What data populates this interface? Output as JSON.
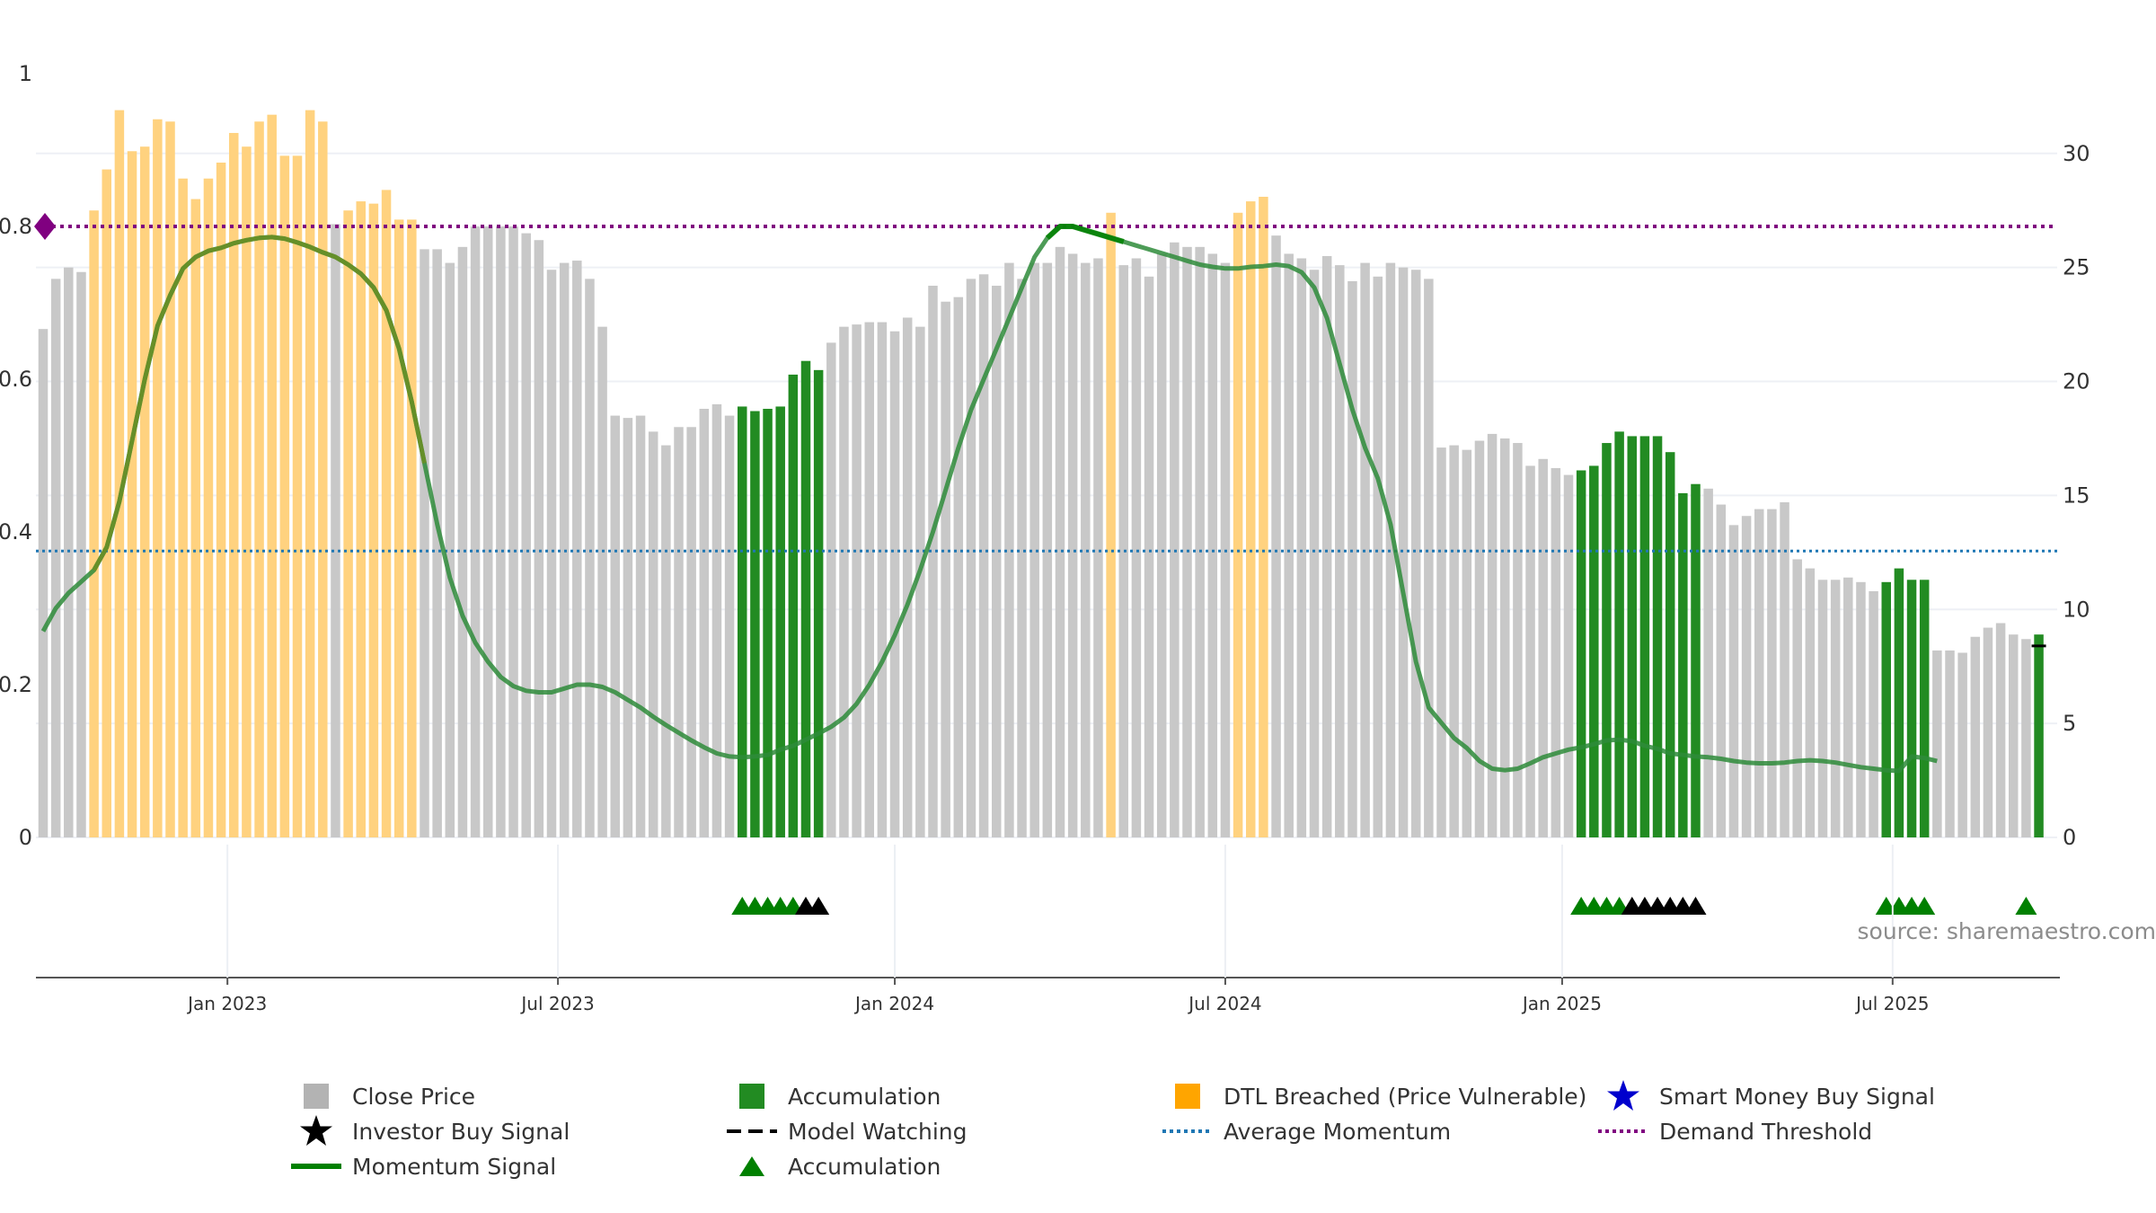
{
  "chart_data": {
    "type": "bar",
    "left_axis": {
      "range": [
        0,
        1
      ],
      "ticks": [
        "0",
        "0.2",
        "0.4",
        "0.6",
        "0.8",
        "1"
      ]
    },
    "right_axis": {
      "range": [
        0,
        33.5
      ],
      "ticks": [
        "0",
        "5",
        "10",
        "15",
        "20",
        "25",
        "30"
      ]
    },
    "x_ticks": [
      {
        "label": "Jan 2023",
        "i": 14.5
      },
      {
        "label": "Jul 2023",
        "i": 40.5
      },
      {
        "label": "Jan 2024",
        "i": 67
      },
      {
        "label": "Jul 2024",
        "i": 93
      },
      {
        "label": "Jan 2025",
        "i": 119.5
      },
      {
        "label": "Jul 2025",
        "i": 145.5
      }
    ],
    "close_prices": [
      22.3,
      24.5,
      25.0,
      24.8,
      27.5,
      29.3,
      31.9,
      30.1,
      30.3,
      31.5,
      31.4,
      28.9,
      28.0,
      28.9,
      29.6,
      30.9,
      30.3,
      31.4,
      31.7,
      29.9,
      29.9,
      31.9,
      31.4,
      26.9,
      27.5,
      27.9,
      27.8,
      28.4,
      27.1,
      27.1,
      25.8,
      25.8,
      25.2,
      25.9,
      26.8,
      26.8,
      26.8,
      26.8,
      26.5,
      26.2,
      24.9,
      25.2,
      25.3,
      24.5,
      22.4,
      18.5,
      18.4,
      18.5,
      17.8,
      17.2,
      18.0,
      18.0,
      18.8,
      19.0,
      18.5,
      18.9,
      18.7,
      18.8,
      18.9,
      20.3,
      20.9,
      20.5,
      21.7,
      22.4,
      22.5,
      22.6,
      22.6,
      22.2,
      22.8,
      22.4,
      24.2,
      23.5,
      23.7,
      24.5,
      24.7,
      24.2,
      25.2,
      24.5,
      25.2,
      25.2,
      25.9,
      25.6,
      25.2,
      25.4,
      27.4,
      25.1,
      25.4,
      24.6,
      25.6,
      26.1,
      25.9,
      25.9,
      25.6,
      25.2,
      27.4,
      27.9,
      28.1,
      26.4,
      25.6,
      25.4,
      24.9,
      25.5,
      25.1,
      24.4,
      25.2,
      24.6,
      25.2,
      25.0,
      24.9,
      24.5,
      17.1,
      17.2,
      17.0,
      17.4,
      17.7,
      17.5,
      17.3,
      16.3,
      16.6,
      16.2,
      15.9,
      16.1,
      16.3,
      17.3,
      17.8,
      17.6,
      17.6,
      17.6,
      16.9,
      15.1,
      15.5,
      15.3,
      14.6,
      13.7,
      14.1,
      14.4,
      14.4,
      14.7,
      12.2,
      11.8,
      11.3,
      11.3,
      11.4,
      11.2,
      10.8,
      11.2,
      11.8,
      11.3,
      11.3,
      8.2,
      8.2,
      8.1,
      8.8,
      9.2,
      9.4,
      8.9,
      8.7,
      8.9
    ],
    "bar_categories": [
      "g",
      "g",
      "g",
      "g",
      "o",
      "o",
      "o",
      "o",
      "o",
      "o",
      "o",
      "o",
      "o",
      "o",
      "o",
      "o",
      "o",
      "o",
      "o",
      "o",
      "o",
      "o",
      "o",
      "g",
      "o",
      "o",
      "o",
      "o",
      "o",
      "o",
      "g",
      "g",
      "g",
      "g",
      "g",
      "g",
      "g",
      "g",
      "g",
      "g",
      "g",
      "g",
      "g",
      "g",
      "g",
      "g",
      "g",
      "g",
      "g",
      "g",
      "g",
      "g",
      "g",
      "g",
      "g",
      "a",
      "a",
      "a",
      "a",
      "a",
      "a",
      "a",
      "g",
      "g",
      "g",
      "g",
      "g",
      "g",
      "g",
      "g",
      "g",
      "g",
      "g",
      "g",
      "g",
      "g",
      "g",
      "g",
      "g",
      "g",
      "g",
      "g",
      "g",
      "g",
      "o",
      "g",
      "g",
      "g",
      "g",
      "g",
      "g",
      "g",
      "g",
      "g",
      "o",
      "o",
      "o",
      "g",
      "g",
      "g",
      "g",
      "g",
      "g",
      "g",
      "g",
      "g",
      "g",
      "g",
      "g",
      "g",
      "g",
      "g",
      "g",
      "g",
      "g",
      "g",
      "g",
      "g",
      "g",
      "g",
      "g",
      "a",
      "a",
      "a",
      "a",
      "a",
      "a",
      "a",
      "a",
      "a",
      "a",
      "g",
      "g",
      "g",
      "g",
      "g",
      "g",
      "g",
      "g",
      "g",
      "g",
      "g",
      "g",
      "g",
      "g",
      "a",
      "a",
      "a",
      "a",
      "g",
      "g",
      "g",
      "g",
      "g",
      "g",
      "g",
      "g",
      "a",
      "g",
      "g"
    ],
    "momentum": [
      [
        0,
        0.27
      ],
      [
        1,
        0.3
      ],
      [
        2,
        0.32
      ],
      [
        3,
        0.335
      ],
      [
        4,
        0.35
      ],
      [
        5,
        0.38
      ],
      [
        6,
        0.44
      ],
      [
        7,
        0.52
      ],
      [
        8,
        0.6
      ],
      [
        9,
        0.67
      ],
      [
        10,
        0.71
      ],
      [
        11,
        0.745
      ],
      [
        12,
        0.76
      ],
      [
        13,
        0.768
      ],
      [
        14,
        0.772
      ],
      [
        15,
        0.778
      ],
      [
        16,
        0.782
      ],
      [
        17,
        0.785
      ],
      [
        18,
        0.786
      ],
      [
        19,
        0.784
      ],
      [
        20,
        0.779
      ],
      [
        21,
        0.773
      ],
      [
        22,
        0.766
      ],
      [
        23,
        0.76
      ],
      [
        24,
        0.75
      ],
      [
        25,
        0.738
      ],
      [
        26,
        0.72
      ],
      [
        27,
        0.69
      ],
      [
        28,
        0.64
      ],
      [
        29,
        0.57
      ],
      [
        30,
        0.49
      ],
      [
        31,
        0.41
      ],
      [
        32,
        0.34
      ],
      [
        33,
        0.29
      ],
      [
        34,
        0.255
      ],
      [
        35,
        0.23
      ],
      [
        36,
        0.21
      ],
      [
        37,
        0.198
      ],
      [
        38,
        0.192
      ],
      [
        39,
        0.19
      ],
      [
        40,
        0.19
      ],
      [
        41,
        0.195
      ],
      [
        42,
        0.2
      ],
      [
        43,
        0.2
      ],
      [
        44,
        0.197
      ],
      [
        45,
        0.19
      ],
      [
        46,
        0.18
      ],
      [
        47,
        0.17
      ],
      [
        48,
        0.158
      ],
      [
        49,
        0.147
      ],
      [
        50,
        0.137
      ],
      [
        51,
        0.127
      ],
      [
        52,
        0.118
      ],
      [
        53,
        0.11
      ],
      [
        54,
        0.106
      ],
      [
        55,
        0.105
      ],
      [
        56,
        0.106
      ],
      [
        57,
        0.108
      ],
      [
        58,
        0.115
      ],
      [
        59,
        0.12
      ],
      [
        60,
        0.128
      ],
      [
        61,
        0.136
      ],
      [
        62,
        0.145
      ],
      [
        63,
        0.157
      ],
      [
        64,
        0.175
      ],
      [
        65,
        0.2
      ],
      [
        66,
        0.23
      ],
      [
        67,
        0.265
      ],
      [
        68,
        0.305
      ],
      [
        69,
        0.35
      ],
      [
        70,
        0.4
      ],
      [
        71,
        0.455
      ],
      [
        72,
        0.51
      ],
      [
        73,
        0.56
      ],
      [
        74,
        0.6
      ],
      [
        75,
        0.64
      ],
      [
        76,
        0.68
      ],
      [
        77,
        0.72
      ],
      [
        78,
        0.76
      ],
      [
        79,
        0.785
      ],
      [
        80,
        0.8
      ],
      [
        81,
        0.8
      ],
      [
        82,
        0.795
      ],
      [
        83,
        0.79
      ],
      [
        84,
        0.785
      ],
      [
        85,
        0.78
      ],
      [
        86,
        0.775
      ],
      [
        87,
        0.77
      ],
      [
        88,
        0.765
      ],
      [
        89,
        0.76
      ],
      [
        90,
        0.755
      ],
      [
        91,
        0.75
      ],
      [
        92,
        0.747
      ],
      [
        93,
        0.745
      ],
      [
        94,
        0.745
      ],
      [
        95,
        0.747
      ],
      [
        96,
        0.748
      ],
      [
        97,
        0.75
      ],
      [
        98,
        0.748
      ],
      [
        99,
        0.74
      ],
      [
        100,
        0.72
      ],
      [
        101,
        0.68
      ],
      [
        102,
        0.62
      ],
      [
        103,
        0.56
      ],
      [
        104,
        0.51
      ],
      [
        105,
        0.47
      ],
      [
        106,
        0.41
      ],
      [
        107,
        0.32
      ],
      [
        108,
        0.23
      ],
      [
        109,
        0.17
      ],
      [
        110,
        0.15
      ],
      [
        111,
        0.13
      ],
      [
        112,
        0.117
      ],
      [
        113,
        0.1
      ],
      [
        114,
        0.09
      ],
      [
        115,
        0.088
      ],
      [
        116,
        0.09
      ],
      [
        117,
        0.097
      ],
      [
        118,
        0.105
      ],
      [
        119,
        0.11
      ],
      [
        120,
        0.115
      ],
      [
        121,
        0.118
      ],
      [
        122,
        0.122
      ],
      [
        123,
        0.127
      ],
      [
        124,
        0.128
      ],
      [
        125,
        0.126
      ],
      [
        126,
        0.12
      ],
      [
        127,
        0.116
      ],
      [
        128,
        0.11
      ],
      [
        129,
        0.108
      ],
      [
        130,
        0.106
      ],
      [
        131,
        0.105
      ],
      [
        132,
        0.103
      ],
      [
        133,
        0.1
      ],
      [
        134,
        0.098
      ],
      [
        135,
        0.097
      ],
      [
        136,
        0.097
      ],
      [
        137,
        0.098
      ],
      [
        138,
        0.1
      ],
      [
        139,
        0.101
      ],
      [
        140,
        0.1
      ],
      [
        141,
        0.098
      ],
      [
        142,
        0.095
      ],
      [
        143,
        0.092
      ],
      [
        144,
        0.09
      ],
      [
        145,
        0.088
      ],
      [
        146,
        0.087
      ],
      [
        147,
        0.106
      ],
      [
        148,
        0.104
      ],
      [
        149,
        0.1
      ]
    ],
    "momentum_highlight_ranges": [
      [
        4,
        30
      ],
      [
        79,
        85
      ]
    ],
    "average_momentum": 0.375,
    "demand_threshold": 0.8,
    "accumulation_markers": [
      55,
      56,
      57,
      58,
      59,
      121,
      122,
      123,
      124,
      145,
      146,
      147,
      148,
      156
    ],
    "investor_buy_markers": [
      60,
      61,
      125,
      126,
      127,
      128,
      129,
      130
    ],
    "model_watching_markers": [
      157
    ],
    "demand_threshold_marker": true,
    "source": "source: sharemaestro.com",
    "legend": [
      {
        "label": "Close Price",
        "symbol": "gray-square",
        "color": "#b3b3b3"
      },
      {
        "label": "Accumulation",
        "symbol": "green-square",
        "color": "#228b22"
      },
      {
        "label": "DTL Breached (Price Vulnerable)",
        "symbol": "orange-square",
        "color": "#ffa500"
      },
      {
        "label": "Smart Money Buy Signal",
        "symbol": "blue-star",
        "color": "#0000cd"
      },
      {
        "label": "Investor Buy Signal",
        "symbol": "black-star",
        "color": "#000000"
      },
      {
        "label": "Model Watching",
        "symbol": "black-dash",
        "color": "#000000"
      },
      {
        "label": "Average Momentum",
        "symbol": "blue-dotted-line",
        "color": "#1f77b4"
      },
      {
        "label": "Demand Threshold",
        "symbol": "purple-dotted-line",
        "color": "#800080"
      },
      {
        "label": "Momentum Signal",
        "symbol": "green-line",
        "color": "#008000"
      },
      {
        "label": "Accumulation",
        "symbol": "green-triangle",
        "color": "#008000"
      }
    ],
    "colors": {
      "gray_bar": "#c8c8c8",
      "orange_bar": "#ffd27f",
      "green_bar": "#228b22",
      "momentum": "#2e8b3a",
      "momentum_highlight": "#6b8e23",
      "momentum_peak": "#008000",
      "avg_line": "#1f77b4",
      "threshold": "#800080"
    }
  }
}
